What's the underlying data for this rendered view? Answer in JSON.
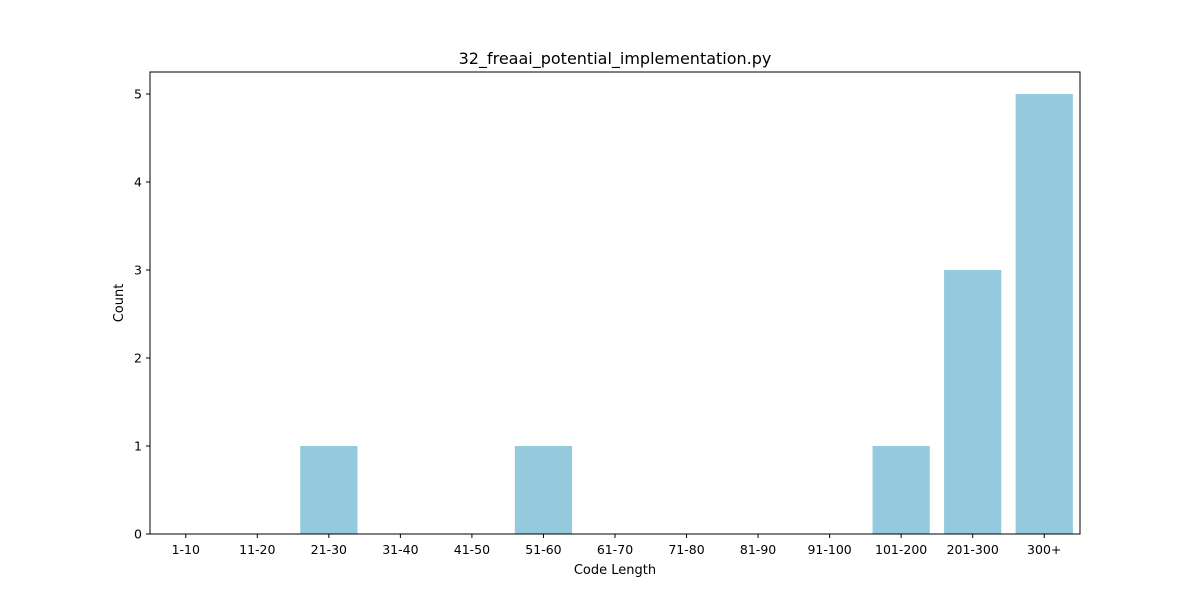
{
  "chart_data": {
    "type": "bar",
    "title": "32_freaai_potential_implementation.py",
    "xlabel": "Code Length",
    "ylabel": "Count",
    "categories": [
      "1-10",
      "11-20",
      "21-30",
      "31-40",
      "41-50",
      "51-60",
      "61-70",
      "71-80",
      "81-90",
      "91-100",
      "101-200",
      "201-300",
      "300+"
    ],
    "values": [
      0,
      0,
      1,
      0,
      0,
      1,
      0,
      0,
      0,
      0,
      1,
      3,
      5
    ],
    "ylim": [
      0,
      5.25
    ],
    "yticks": [
      0,
      1,
      2,
      3,
      4,
      5
    ],
    "grid": false,
    "legend": "none",
    "colors": {
      "bar": "#95c9de",
      "axis": "#000000"
    }
  }
}
